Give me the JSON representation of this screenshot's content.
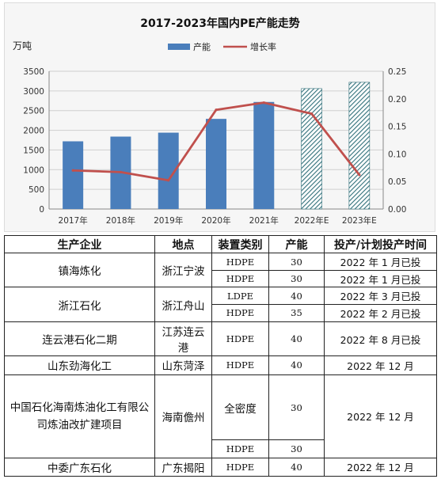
{
  "chart_data": {
    "type": "bar",
    "title": "2017-2023年国内PE产能走势",
    "ylabel": "万吨",
    "categories": [
      "2017年",
      "2018年",
      "2019年",
      "2020年",
      "2021年",
      "2022年E",
      "2023年E"
    ],
    "series": [
      {
        "name": "产能",
        "kind": "bar",
        "axis": "left",
        "values": [
          1720,
          1840,
          1940,
          2290,
          2720,
          3060,
          3220
        ],
        "estimated": [
          false,
          false,
          false,
          false,
          false,
          true,
          true
        ]
      },
      {
        "name": "增长率",
        "kind": "line",
        "axis": "right",
        "values": [
          0.07,
          0.067,
          0.052,
          0.18,
          0.193,
          0.173,
          0.062
        ]
      }
    ],
    "ylim": [
      0,
      3500
    ],
    "y_ticks": [
      "0",
      "500",
      "1000",
      "1500",
      "2000",
      "2500",
      "3000",
      "3500"
    ],
    "y2lim": [
      0,
      0.25
    ],
    "y2_ticks": [
      "0.00",
      "0.05",
      "0.10",
      "0.15",
      "0.20",
      "0.25"
    ],
    "grid": true,
    "legend": "top-center",
    "colors": {
      "bar": "#4a7ebb",
      "line": "#c0504d",
      "hatch": "#31707a"
    }
  },
  "table": {
    "headers": [
      "生产企业",
      "地点",
      "装置类别",
      "产能",
      "投产/计划投产时间"
    ],
    "rows": [
      {
        "enterprise": "镇海炼化",
        "location": "浙江宁波",
        "units": [
          {
            "type": "HDPE",
            "capacity": "30",
            "date": "2022 年 1 月已投"
          },
          {
            "type": "HDPE",
            "capacity": "30",
            "date": "2022 年 1 月已投"
          }
        ]
      },
      {
        "enterprise": "浙江石化",
        "location": "浙江舟山",
        "units": [
          {
            "type": "LDPE",
            "capacity": "40",
            "date": "2022 年 3 月已投"
          },
          {
            "type": "HDPE",
            "capacity": "35",
            "date": "2022 年 2 月已投"
          }
        ]
      },
      {
        "enterprise": "连云港石化二期",
        "location": "江苏连云港",
        "units": [
          {
            "type": "HDPE",
            "capacity": "40",
            "date": "2022 年 8 月已投"
          }
        ]
      },
      {
        "enterprise": "山东劲海化工",
        "location": "山东菏泽",
        "units": [
          {
            "type": "HDPE",
            "capacity": "40",
            "date": "2022 年 12 月"
          }
        ]
      },
      {
        "enterprise": "中国石化海南炼油化工有限公司炼油改扩建项目",
        "location": "海南儋州",
        "units": [
          {
            "type": "全密度",
            "capacity": "30"
          },
          {
            "type": "HDPE",
            "capacity": "30"
          }
        ],
        "date": "2022 年 12 月"
      },
      {
        "enterprise": "中委广东石化",
        "location": "广东揭阳",
        "units": [
          {
            "type": "HDPE",
            "capacity": "40",
            "date": "2022 年 12 月"
          }
        ]
      }
    ]
  }
}
